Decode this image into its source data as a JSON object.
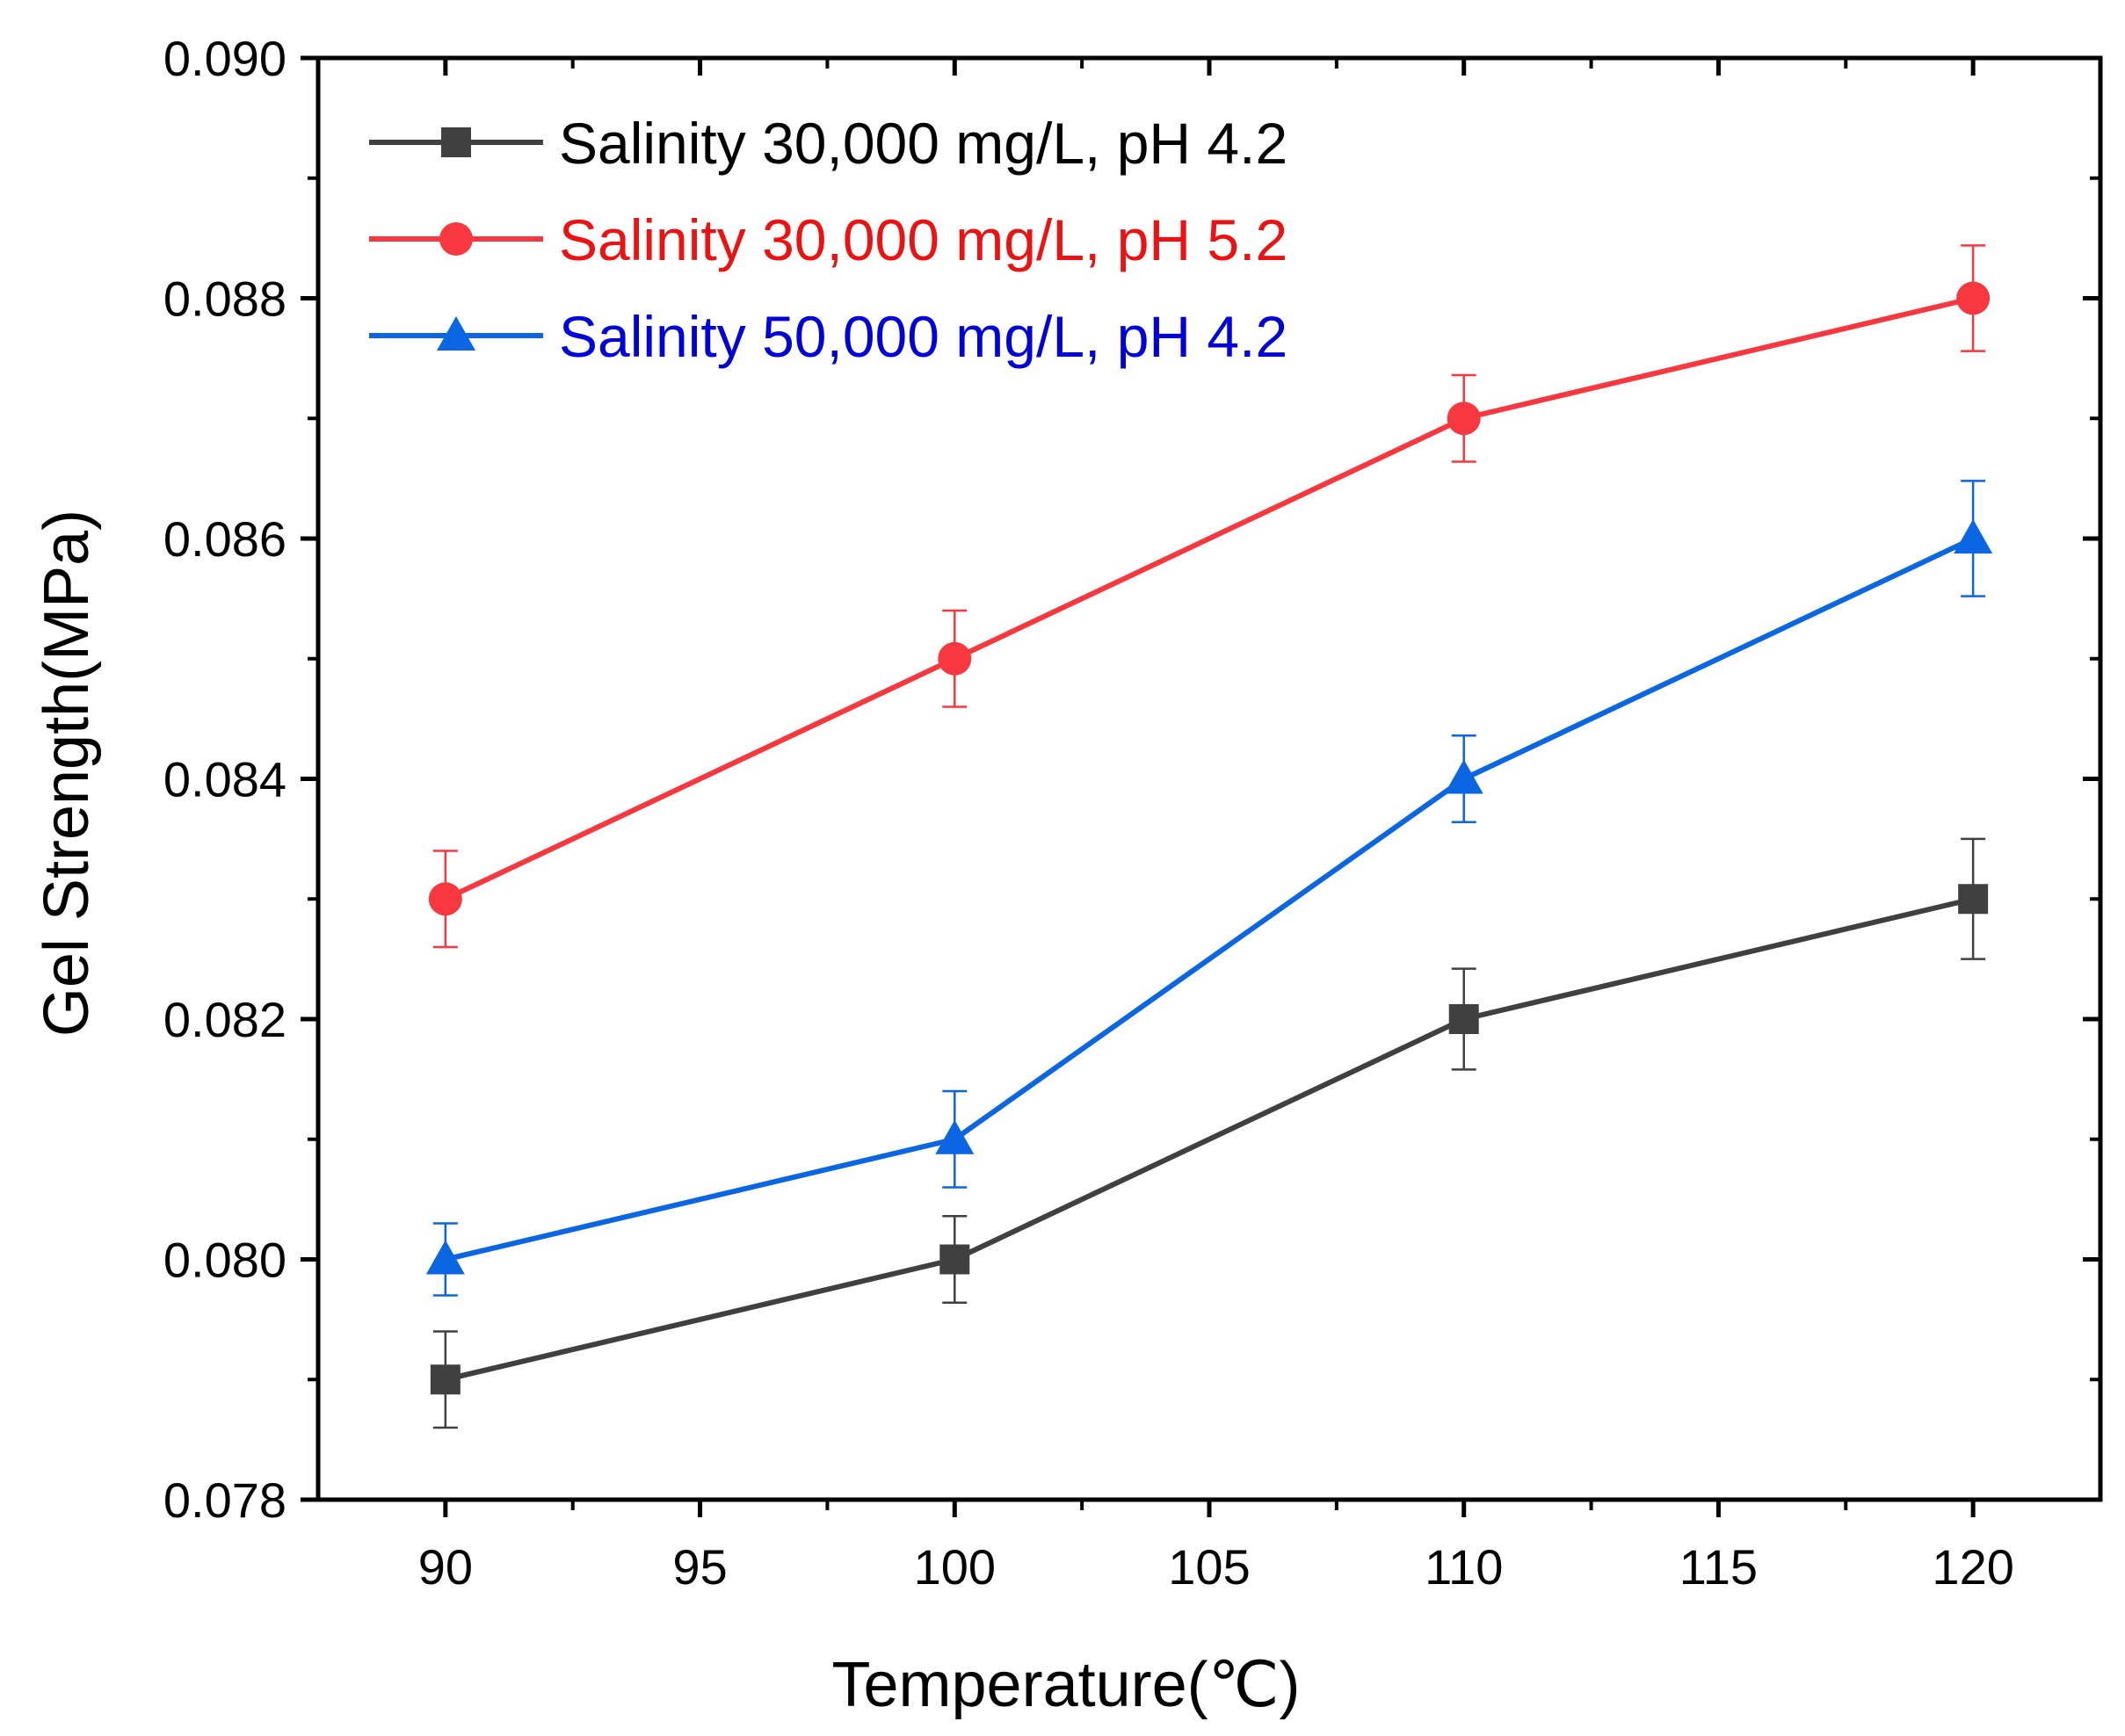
{
  "chart_data": {
    "type": "line",
    "xlabel": "Temperature(℃)",
    "ylabel": "Gel Strength(MPa)",
    "xlim": [
      87.5,
      122.5
    ],
    "ylim": [
      0.078,
      0.09
    ],
    "x_ticks": [
      90,
      95,
      100,
      105,
      110,
      115,
      120
    ],
    "x_tick_labels": [
      "90",
      "95",
      "100",
      "105",
      "110",
      "115",
      "120"
    ],
    "y_ticks": [
      0.078,
      0.08,
      0.082,
      0.084,
      0.086,
      0.088,
      0.09
    ],
    "y_tick_labels": [
      "0.078",
      "0.080",
      "0.082",
      "0.084",
      "0.086",
      "0.088",
      "0.090"
    ],
    "grid": false,
    "legend_position": "top-left",
    "x": [
      90,
      100,
      110,
      120
    ],
    "series": [
      {
        "name": "Salinity 30,000 mg/L, pH 4.2",
        "marker": "square",
        "color": "#404040",
        "label_color": "#000000",
        "values": [
          0.079,
          0.08,
          0.082,
          0.083
        ],
        "errors": [
          0.0004,
          0.00036,
          0.00042,
          0.0005
        ]
      },
      {
        "name": "Salinity 30,000 mg/L, pH 5.2",
        "marker": "circle",
        "color": "#f8383e",
        "label_color": "#ee1111",
        "values": [
          0.083,
          0.085,
          0.087,
          0.088
        ],
        "errors": [
          0.0004,
          0.0004,
          0.00036,
          0.00044
        ]
      },
      {
        "name": "Salinity 50,000 mg/L, pH 4.2",
        "marker": "triangle",
        "color": "#0b66e4",
        "label_color": "#0000dd",
        "values": [
          0.08,
          0.081,
          0.084,
          0.086
        ],
        "errors": [
          0.0003,
          0.0004,
          0.00036,
          0.00048
        ]
      }
    ]
  }
}
